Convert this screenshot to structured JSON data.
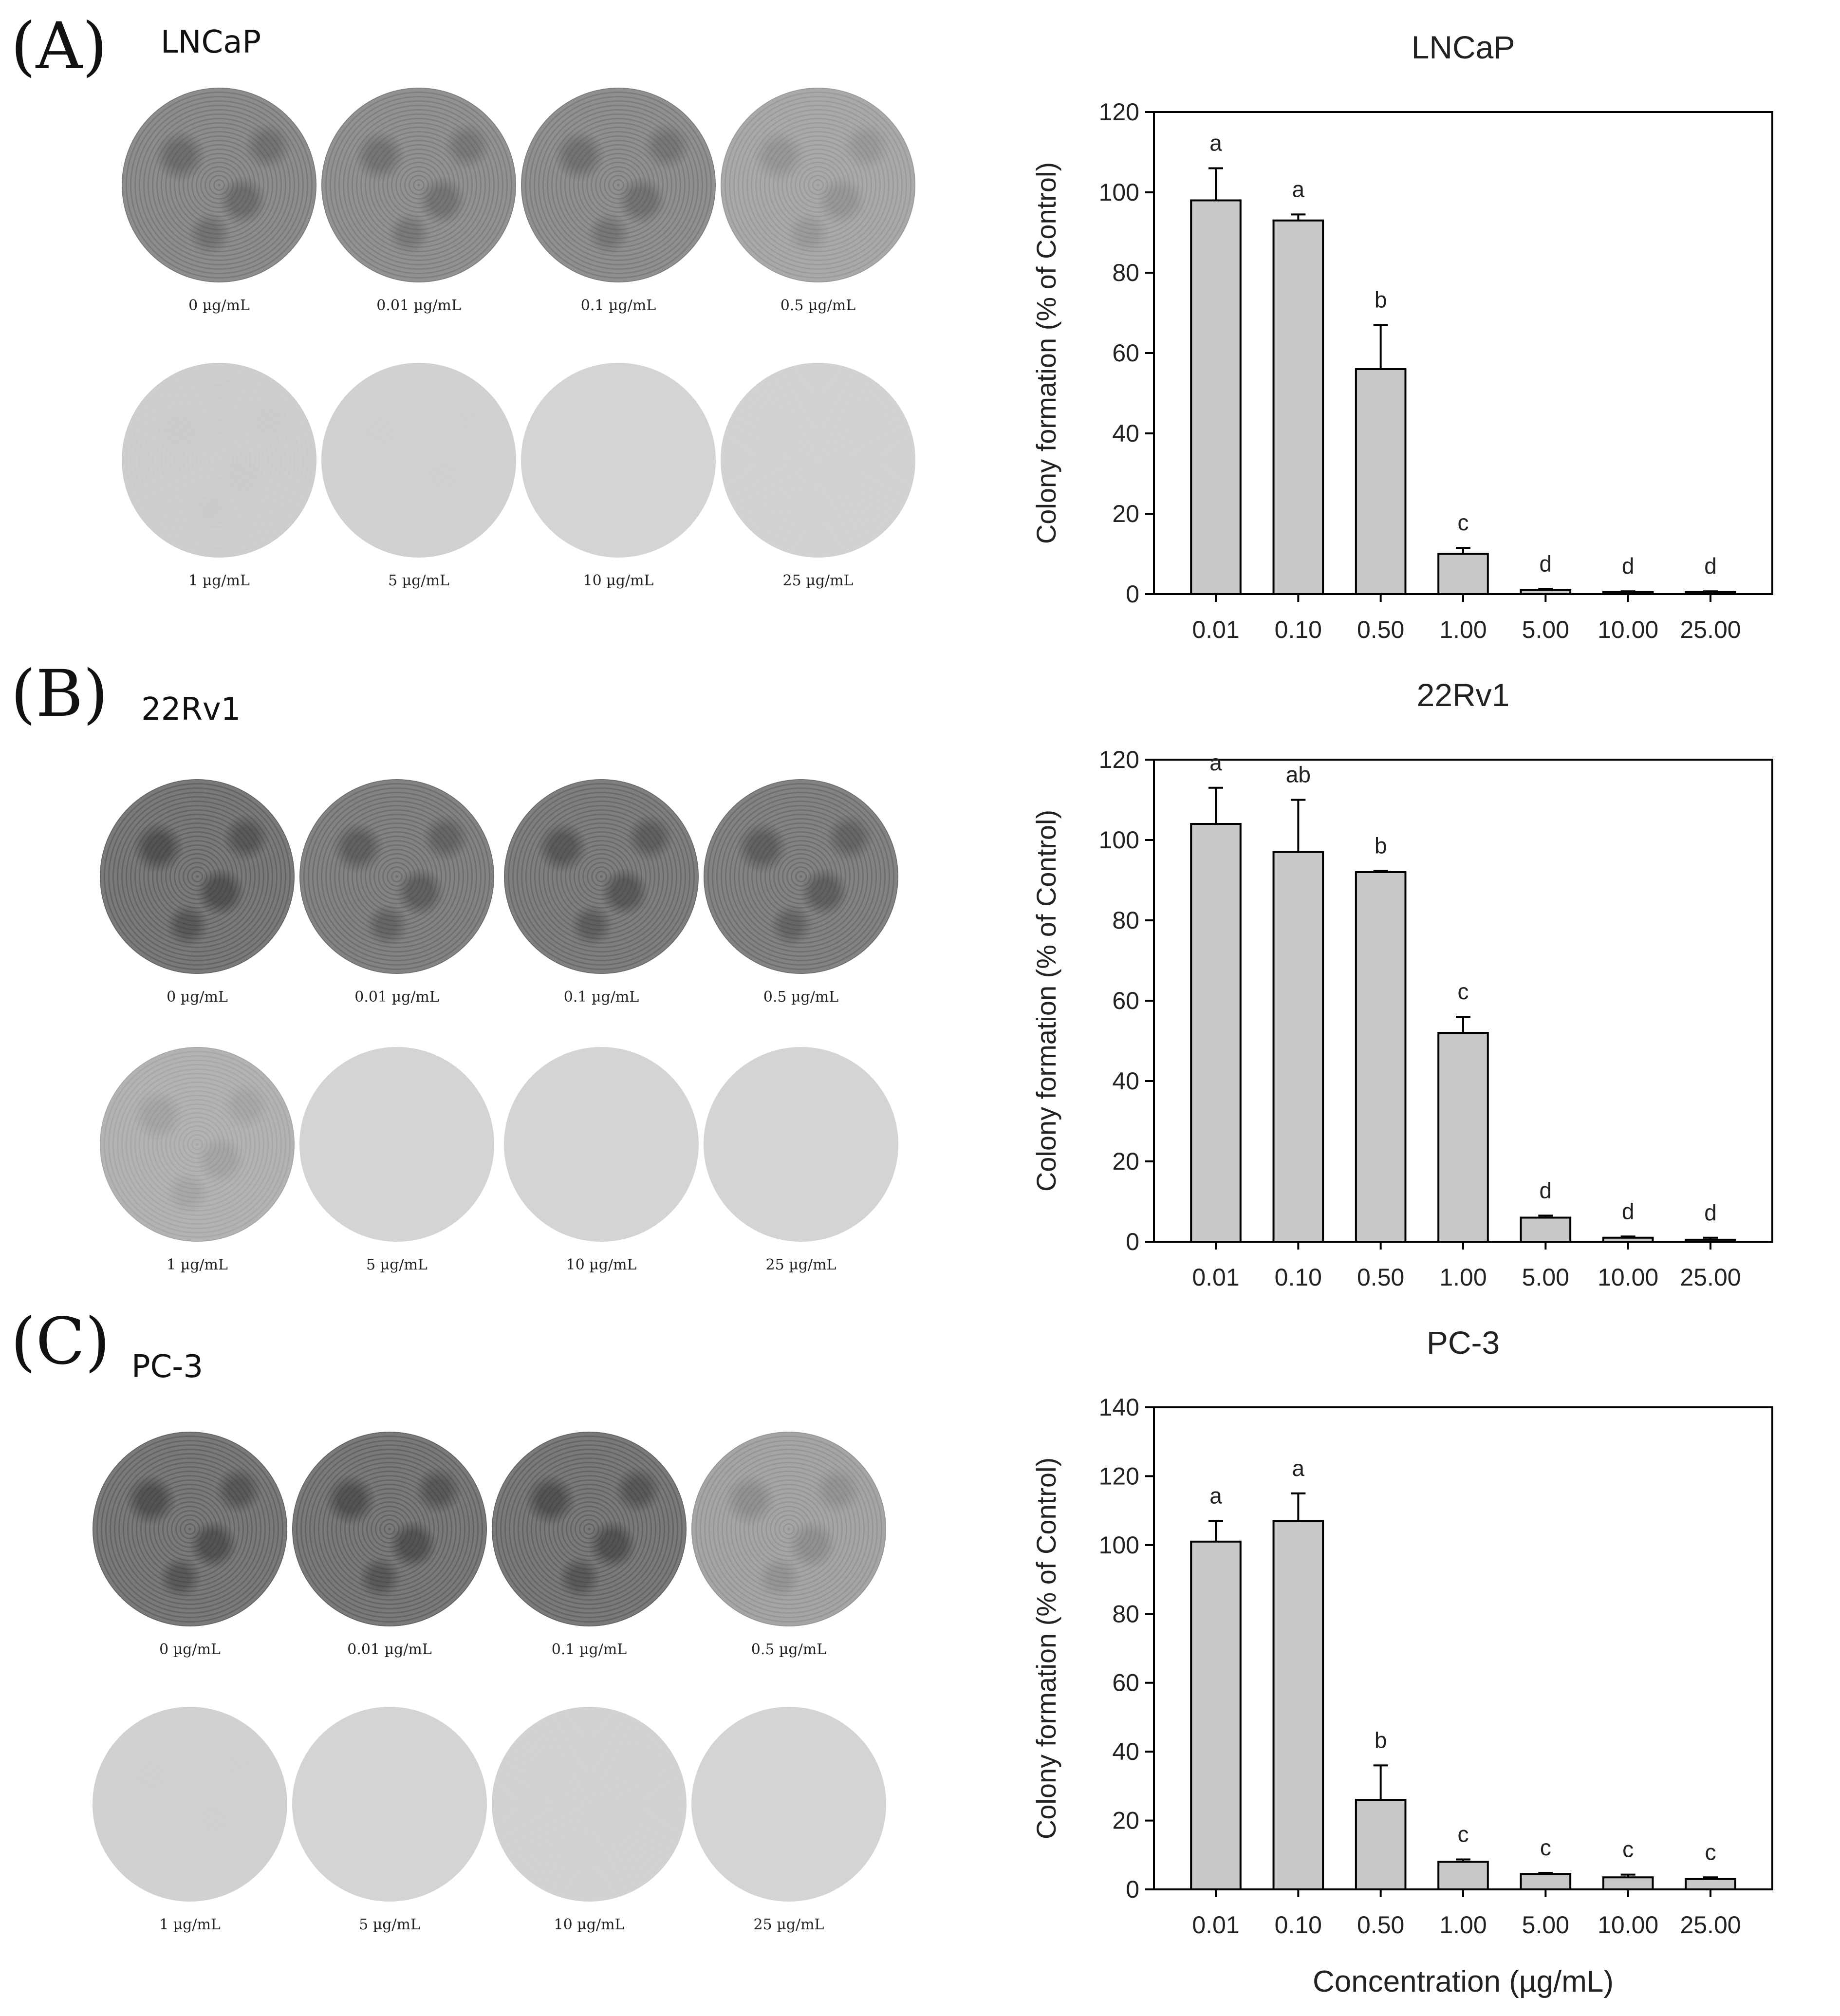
{
  "panels": [
    {
      "letter": "(A)",
      "cell_line": "LNCaP",
      "dish_labels": [
        "0 µg/mL",
        "0.01 µg/mL",
        "0.1 µg/mL",
        "0.5 µg/mL",
        "1 µg/mL",
        "5 µg/mL",
        "10 µg/mL",
        "25 µg/mL"
      ],
      "dish_density": [
        0.75,
        0.7,
        0.72,
        0.45,
        0.06,
        0.03,
        0.0,
        0.02
      ]
    },
    {
      "letter": "(B)",
      "cell_line": "22Rv1",
      "dish_labels": [
        "0 µg/mL",
        "0.01 µg/mL",
        "0.1 µg/mL",
        "0.5 µg/mL",
        "1 µg/mL",
        "5 µg/mL",
        "10 µg/mL",
        "25 µg/mL"
      ],
      "dish_density": [
        0.95,
        0.85,
        0.9,
        0.85,
        0.35,
        0.0,
        0.0,
        0.0
      ]
    },
    {
      "letter": "(C)",
      "cell_line": "PC-3",
      "dish_labels": [
        "0 µg/mL",
        "0.01 µg/mL",
        "0.1 µg/mL",
        "0.5 µg/mL",
        "1 µg/mL",
        "5 µg/mL",
        "10 µg/mL",
        "25 µg/mL"
      ],
      "dish_density": [
        0.95,
        0.95,
        0.95,
        0.5,
        0.03,
        0.0,
        0.02,
        0.0
      ]
    }
  ],
  "chart_data": [
    {
      "type": "bar",
      "title": "LNCaP",
      "categories": [
        "0.01",
        "0.10",
        "0.50",
        "1.00",
        "5.00",
        "10.00",
        "25.00"
      ],
      "values": [
        98,
        93,
        56,
        10,
        1,
        0.5,
        0.5
      ],
      "errors": [
        8,
        1.5,
        11,
        1.5,
        0.3,
        0.2,
        0.2
      ],
      "sig_labels": [
        "a",
        "a",
        "b",
        "c",
        "d",
        "d",
        "d"
      ],
      "ylabel": "Colony formation (% of Control)",
      "xlabel": "",
      "ylim": [
        0,
        120
      ],
      "yticks": [
        0,
        20,
        40,
        60,
        80,
        100,
        120
      ],
      "bar_color": "#c8c8c8"
    },
    {
      "type": "bar",
      "title": "22Rv1",
      "categories": [
        "0.01",
        "0.10",
        "0.50",
        "1.00",
        "5.00",
        "10.00",
        "25.00"
      ],
      "values": [
        104,
        97,
        92,
        52,
        6,
        1,
        0.5
      ],
      "errors": [
        9,
        13,
        0.3,
        4,
        0.5,
        0.3,
        0.5
      ],
      "sig_labels": [
        "a",
        "ab",
        "b",
        "c",
        "d",
        "d",
        "d"
      ],
      "ylabel": "Colony formation (% of Control)",
      "xlabel": "",
      "ylim": [
        0,
        120
      ],
      "yticks": [
        0,
        20,
        40,
        60,
        80,
        100,
        120
      ],
      "bar_color": "#c8c8c8"
    },
    {
      "type": "bar",
      "title": "PC-3",
      "categories": [
        "0.01",
        "0.10",
        "0.50",
        "1.00",
        "5.00",
        "10.00",
        "25.00"
      ],
      "values": [
        101,
        107,
        26,
        8,
        4.5,
        3.5,
        3
      ],
      "errors": [
        6,
        8,
        10,
        0.7,
        0.3,
        0.8,
        0.5
      ],
      "sig_labels": [
        "a",
        "a",
        "b",
        "c",
        "c",
        "c",
        "c"
      ],
      "ylabel": "Colony formation (% of Control)",
      "xlabel": "Concentration (µg/mL)",
      "ylim": [
        0,
        140
      ],
      "yticks": [
        0,
        20,
        40,
        60,
        80,
        100,
        120,
        140
      ],
      "bar_color": "#c8c8c8"
    }
  ]
}
